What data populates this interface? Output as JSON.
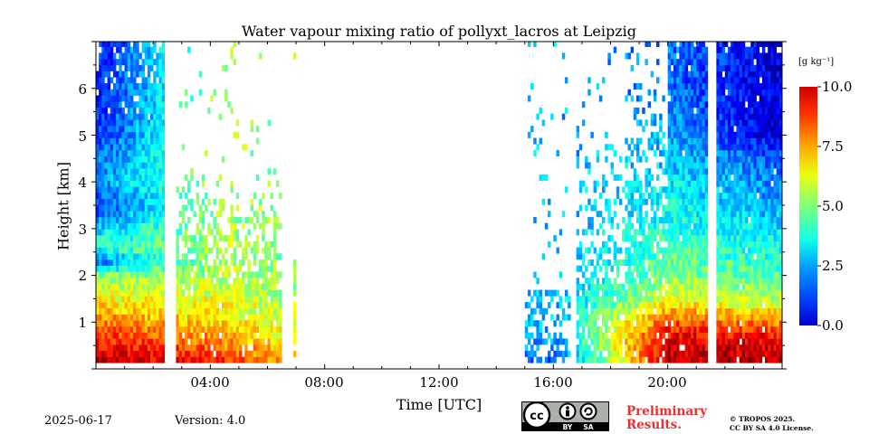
{
  "chart_data": {
    "type": "heatmap",
    "title": "Water vapour mixing ratio of pollyxt_lacros at Leipzig",
    "xlabel": "Time [UTC]",
    "ylabel": "Height [km]",
    "xlim_hours": [
      0,
      24
    ],
    "ylim_km": [
      0,
      7
    ],
    "x_ticks": [
      "04:00",
      "08:00",
      "12:00",
      "16:00",
      "20:00"
    ],
    "y_ticks": [
      "1",
      "2",
      "3",
      "4",
      "5",
      "6"
    ],
    "colorbar": {
      "label": "[g kg$^{-1}$]",
      "label_display": "[g kg⁻¹]",
      "range": [
        0.0,
        10.0
      ],
      "ticks": [
        "0.0",
        "2.5",
        "5.0",
        "7.5",
        "10.0"
      ],
      "colormap": "jet"
    },
    "data_gaps_hours": [
      [
        2.45,
        2.8
      ],
      [
        6.5,
        6.85
      ],
      [
        7.0,
        15.0
      ],
      [
        16.55,
        16.8
      ],
      [
        21.45,
        21.7
      ]
    ],
    "profiles": [
      {
        "time_h": 0.0,
        "height_km": [
          0.2,
          0.6,
          1.0,
          1.5,
          2.0,
          2.3,
          2.6,
          3.0,
          3.5,
          4.0,
          5.0,
          6.0,
          6.9
        ],
        "value": [
          9.6,
          8.6,
          7.6,
          6.2,
          5.0,
          2.2,
          4.2,
          3.2,
          1.6,
          2.6,
          1.8,
          1.4,
          1.4
        ]
      },
      {
        "time_h": 4.5,
        "height_km": [
          0.1,
          0.5,
          1.0,
          1.5,
          2.0,
          2.5,
          3.0
        ],
        "value": [
          8.5,
          7.5,
          6.5,
          6.0,
          5.5,
          5.5,
          5.5
        ]
      },
      {
        "time_h": 16.0,
        "height_km": [
          0.1,
          0.5,
          1.0,
          1.5,
          2.0
        ],
        "value": [
          1.5,
          2.5,
          3.0,
          3.0,
          3.0
        ]
      },
      {
        "time_h": 20.0,
        "height_km": [
          0.2,
          0.6,
          1.0,
          1.5,
          2.0,
          2.5,
          3.0,
          3.5,
          4.0,
          5.0,
          6.0
        ],
        "value": [
          9.2,
          9.0,
          8.0,
          6.0,
          5.0,
          4.6,
          4.2,
          3.8,
          3.6,
          3.0,
          2.4
        ]
      },
      {
        "time_h": 23.5,
        "height_km": [
          0.2,
          0.6,
          1.0,
          1.5,
          2.0,
          2.5,
          3.0,
          3.5,
          4.0,
          4.5,
          5.0,
          6.0,
          6.9
        ],
        "value": [
          9.5,
          9.0,
          7.5,
          5.5,
          4.5,
          4.0,
          3.5,
          3.0,
          2.6,
          2.2,
          1.0,
          1.0,
          1.0
        ]
      }
    ]
  },
  "footer": {
    "date": "2025-06-17",
    "version": "Version: 4.0",
    "preliminary_line1": "Preliminary",
    "preliminary_line2": "Results.",
    "copyright_line1": "© TROPOS 2025.",
    "copyright_line2": "CC BY SA 4.0 License."
  },
  "license_badge": {
    "icon": "cc-by-sa-icon",
    "texts": [
      "cc",
      "BY",
      "SA"
    ]
  },
  "colors": {
    "preliminary": "#e8302f",
    "badge_bg": "#abb1aa",
    "badge_dark": "#000000"
  }
}
